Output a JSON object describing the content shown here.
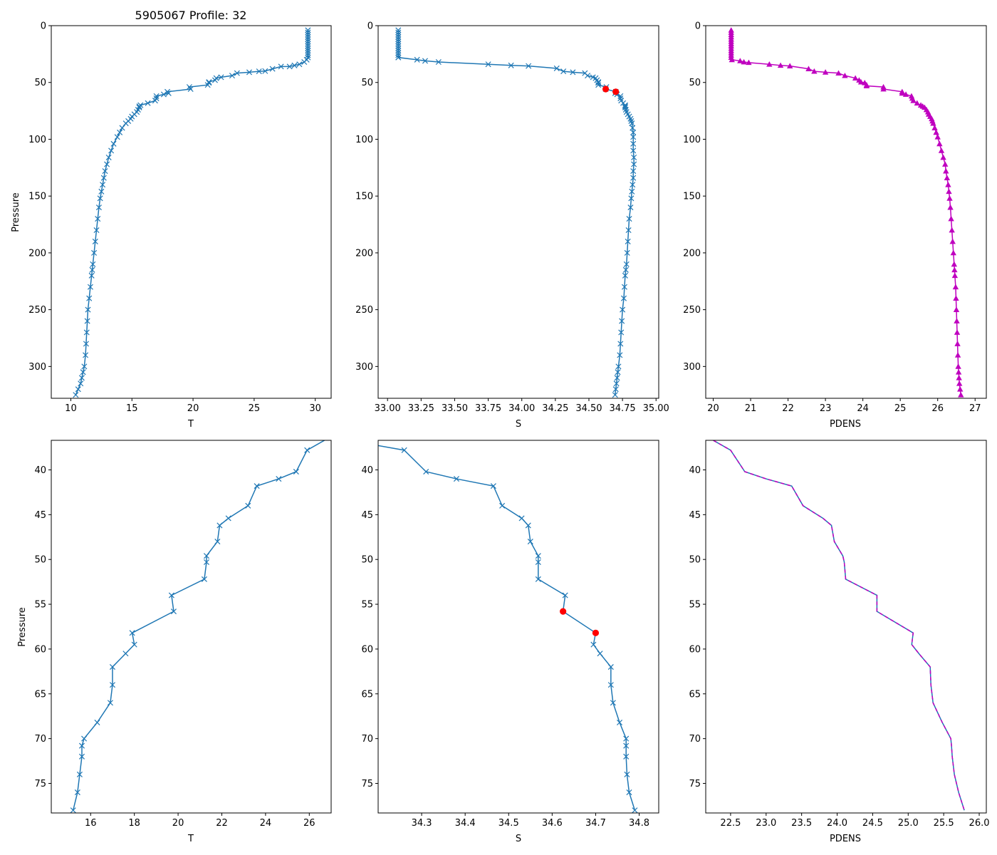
{
  "figure": {
    "title": "5905067 Profile: 32"
  },
  "colors": {
    "line": "#1f77b4",
    "density": "#bf00bf",
    "flag": "#ff0000",
    "axes": "#000000"
  },
  "chart_data": [
    {
      "id": "T-full",
      "type": "line",
      "xlabel": "T",
      "ylabel": "Pressure",
      "xlim": [
        8.4,
        31.3
      ],
      "ylim": [
        328,
        0
      ],
      "inverted_y": true,
      "xticks": [
        10,
        15,
        20,
        25,
        30
      ],
      "xtick_labels": [
        "10",
        "15",
        "20",
        "25",
        "30"
      ],
      "yticks": [
        0,
        50,
        100,
        150,
        200,
        250,
        300
      ],
      "ytick_labels": [
        "0",
        "50",
        "100",
        "150",
        "200",
        "250",
        "300"
      ],
      "series": [
        {
          "name": "T",
          "marker": "x",
          "color": "#1f77b4",
          "x": [
            29.4,
            29.4,
            29.4,
            29.4,
            29.4,
            29.4,
            29.4,
            29.4,
            29.4,
            29.4,
            29.4,
            29.4,
            29.4,
            29.3,
            29.1,
            28.7,
            28.3,
            27.9,
            27.2,
            26.5,
            25.9,
            25.4,
            24.6,
            23.6,
            23.2,
            22.3,
            21.9,
            21.8,
            21.3,
            21.3,
            21.2,
            19.7,
            19.8,
            17.9,
            18.0,
            17.6,
            17.0,
            17.0,
            16.9,
            16.3,
            15.7,
            15.6,
            15.6,
            15.5,
            15.4,
            15.2,
            15.0,
            14.9,
            14.7,
            14.5,
            14.2,
            14.0,
            13.8,
            13.5,
            13.3,
            13.1,
            12.95,
            12.8,
            12.7,
            12.6,
            12.5,
            12.4,
            12.3,
            12.2,
            12.1,
            12.0,
            11.9,
            11.8,
            11.75,
            11.7,
            11.6,
            11.5,
            11.4,
            11.35,
            11.3,
            11.25,
            11.2,
            11.1,
            11.0,
            10.9,
            10.8,
            10.6,
            10.4
          ],
          "y": [
            4,
            6,
            8,
            10,
            12,
            14,
            16,
            18,
            20,
            22,
            24,
            26,
            28,
            30,
            32,
            34,
            35,
            36,
            36,
            38,
            40,
            40.2,
            41,
            41.8,
            44,
            45.4,
            46.2,
            48,
            49.6,
            50.3,
            52.2,
            54,
            55.8,
            58.2,
            59.5,
            60.5,
            62,
            64,
            66,
            68.2,
            70,
            71,
            72,
            74,
            76,
            78,
            80,
            82,
            84,
            86,
            90,
            94,
            98,
            104,
            110,
            116,
            122,
            128,
            134,
            140,
            146,
            152,
            160,
            170,
            180,
            190,
            200,
            210,
            215,
            220,
            230,
            240,
            250,
            260,
            270,
            280,
            290,
            300,
            305,
            310,
            315,
            320,
            325
          ]
        }
      ]
    },
    {
      "id": "S-full",
      "type": "line",
      "xlabel": "S",
      "ylabel": "",
      "xlim": [
        32.93,
        35.02
      ],
      "ylim": [
        328,
        0
      ],
      "inverted_y": true,
      "xticks": [
        33.0,
        33.25,
        33.5,
        33.75,
        34.0,
        34.25,
        34.5,
        34.75,
        35.0
      ],
      "xtick_labels": [
        "33.00",
        "33.25",
        "33.50",
        "33.75",
        "34.00",
        "34.25",
        "34.50",
        "34.75",
        "35.00"
      ],
      "yticks": [
        0,
        50,
        100,
        150,
        200,
        250,
        300
      ],
      "ytick_labels": [
        "0",
        "50",
        "100",
        "150",
        "200",
        "250",
        "300"
      ],
      "series": [
        {
          "name": "S",
          "marker": "x",
          "color": "#1f77b4",
          "x": [
            33.08,
            33.08,
            33.08,
            33.08,
            33.08,
            33.08,
            33.08,
            33.08,
            33.08,
            33.08,
            33.08,
            33.08,
            33.08,
            33.08,
            33.22,
            33.28,
            33.38,
            33.75,
            33.92,
            34.05,
            34.26,
            34.31,
            34.38,
            34.47,
            34.49,
            34.53,
            34.55,
            34.56,
            34.57,
            34.57,
            34.57,
            34.63,
            34.625,
            34.7,
            34.695,
            34.71,
            34.735,
            34.735,
            34.74,
            34.755,
            34.77,
            34.77,
            34.77,
            34.775,
            34.78,
            34.79,
            34.8,
            34.81,
            34.815,
            34.82,
            34.825,
            34.83,
            34.83,
            34.83,
            34.83,
            34.835,
            34.835,
            34.83,
            34.83,
            34.825,
            34.82,
            34.815,
            34.81,
            34.8,
            34.795,
            34.79,
            34.785,
            34.78,
            34.775,
            34.77,
            34.765,
            34.76,
            34.75,
            34.745,
            34.74,
            34.735,
            34.73,
            34.72,
            34.715,
            34.71,
            34.705,
            34.7,
            34.695
          ],
          "y": [
            4,
            6,
            8,
            10,
            12,
            14,
            16,
            18,
            20,
            22,
            24,
            26,
            28,
            28,
            30,
            31,
            32,
            34,
            35,
            35.5,
            37.6,
            40.2,
            41,
            41.8,
            44,
            45.4,
            46.2,
            48,
            49.6,
            50.3,
            52.2,
            54,
            55.8,
            58.2,
            59.5,
            60.5,
            62,
            64,
            66,
            68.2,
            70,
            71,
            72,
            74,
            76,
            78,
            80,
            82,
            84,
            86,
            90,
            94,
            98,
            104,
            110,
            116,
            122,
            128,
            134,
            140,
            146,
            152,
            160,
            170,
            180,
            190,
            200,
            210,
            215,
            220,
            230,
            240,
            250,
            260,
            270,
            280,
            290,
            300,
            305,
            310,
            315,
            320,
            325
          ]
        }
      ],
      "flagged_points": {
        "x": [
          34.625,
          34.7
        ],
        "y": [
          55.8,
          58.2
        ]
      }
    },
    {
      "id": "PDENS-full",
      "type": "line",
      "xlabel": "PDENS",
      "ylabel": "",
      "xlim": [
        19.8,
        27.3
      ],
      "ylim": [
        328,
        0
      ],
      "inverted_y": true,
      "xticks": [
        20,
        21,
        22,
        23,
        24,
        25,
        26,
        27
      ],
      "xtick_labels": [
        "20",
        "21",
        "22",
        "23",
        "24",
        "25",
        "26",
        "27"
      ],
      "yticks": [
        0,
        50,
        100,
        150,
        200,
        250,
        300
      ],
      "ytick_labels": [
        "0",
        "50",
        "100",
        "150",
        "200",
        "250",
        "300"
      ],
      "series": [
        {
          "name": "PDENS",
          "marker": "triangle",
          "color": "#bf00bf",
          "x": [
            20.48,
            20.48,
            20.48,
            20.48,
            20.48,
            20.48,
            20.48,
            20.48,
            20.48,
            20.48,
            20.48,
            20.48,
            20.48,
            20.5,
            20.72,
            20.82,
            20.95,
            21.5,
            21.8,
            22.05,
            22.55,
            22.7,
            23.0,
            23.35,
            23.52,
            23.8,
            23.9,
            23.95,
            24.05,
            24.1,
            24.1,
            24.55,
            24.55,
            25.05,
            25.05,
            25.15,
            25.3,
            25.32,
            25.35,
            25.45,
            25.55,
            25.6,
            25.65,
            25.7,
            25.74,
            25.76,
            25.8,
            25.84,
            25.86,
            25.88,
            25.92,
            25.96,
            26.0,
            26.05,
            26.1,
            26.15,
            26.2,
            26.22,
            26.25,
            26.28,
            26.3,
            26.32,
            26.34,
            26.36,
            26.38,
            26.4,
            26.42,
            26.44,
            26.45,
            26.46,
            26.48,
            26.49,
            26.5,
            26.51,
            26.52,
            26.53,
            26.54,
            26.55,
            26.56,
            26.57,
            26.58,
            26.6,
            26.62
          ],
          "y": [
            4,
            6,
            8,
            10,
            12,
            14,
            16,
            18,
            20,
            22,
            24,
            26,
            28,
            30,
            31,
            32,
            32.5,
            34,
            35,
            35.5,
            38,
            40.2,
            41,
            41.8,
            44,
            46.2,
            48,
            49.6,
            50.3,
            52.2,
            53,
            54,
            55.8,
            58.2,
            59.5,
            60.5,
            62,
            64,
            66,
            68.2,
            70,
            71,
            72,
            74,
            76,
            78,
            80,
            82,
            84,
            86,
            90,
            94,
            98,
            104,
            110,
            116,
            122,
            128,
            134,
            140,
            146,
            152,
            160,
            170,
            180,
            190,
            200,
            210,
            215,
            220,
            230,
            240,
            250,
            260,
            270,
            280,
            290,
            300,
            305,
            310,
            315,
            320,
            325
          ]
        }
      ]
    },
    {
      "id": "T-zoom",
      "type": "line",
      "xlabel": "T",
      "ylabel": "Pressure",
      "xlim": [
        14.2,
        27.0
      ],
      "ylim": [
        78.3,
        36.7
      ],
      "inverted_y": true,
      "xticks": [
        16,
        18,
        20,
        22,
        24,
        26
      ],
      "xtick_labels": [
        "16",
        "18",
        "20",
        "22",
        "24",
        "26"
      ],
      "yticks": [
        40,
        45,
        50,
        55,
        60,
        65,
        70,
        75
      ],
      "ytick_labels": [
        "40",
        "45",
        "50",
        "55",
        "60",
        "65",
        "70",
        "75"
      ],
      "series": [
        {
          "name": "T",
          "marker": "x",
          "color": "#1f77b4",
          "x": [
            27.2,
            25.9,
            25.4,
            24.6,
            23.6,
            23.2,
            22.3,
            21.9,
            21.8,
            21.3,
            21.3,
            21.2,
            19.7,
            19.8,
            17.9,
            18.0,
            17.6,
            17.0,
            17.0,
            16.9,
            16.3,
            15.7,
            15.6,
            15.6,
            15.5,
            15.4,
            15.2
          ],
          "y": [
            36,
            37.8,
            40.2,
            41.0,
            41.8,
            44.0,
            45.4,
            46.2,
            48.0,
            49.6,
            50.3,
            52.2,
            54.0,
            55.8,
            58.2,
            59.5,
            60.5,
            62.0,
            64.0,
            66.0,
            68.2,
            70.0,
            70.8,
            72.0,
            74.0,
            76.0,
            78.0
          ]
        }
      ]
    },
    {
      "id": "S-zoom",
      "type": "line",
      "xlabel": "S",
      "ylabel": "",
      "xlim": [
        34.2,
        34.845
      ],
      "ylim": [
        78.3,
        36.7
      ],
      "inverted_y": true,
      "xticks": [
        34.3,
        34.4,
        34.5,
        34.6,
        34.7,
        34.8
      ],
      "xtick_labels": [
        "34.3",
        "34.4",
        "34.5",
        "34.6",
        "34.7",
        "34.8"
      ],
      "yticks": [
        40,
        45,
        50,
        55,
        60,
        65,
        70,
        75
      ],
      "ytick_labels": [
        "40",
        "45",
        "50",
        "55",
        "60",
        "65",
        "70",
        "75"
      ],
      "series": [
        {
          "name": "S",
          "marker": "x",
          "color": "#1f77b4",
          "x": [
            34.05,
            34.26,
            34.31,
            34.38,
            34.465,
            34.485,
            34.53,
            34.545,
            34.55,
            34.568,
            34.568,
            34.568,
            34.63,
            34.625,
            34.7,
            34.695,
            34.71,
            34.735,
            34.735,
            34.74,
            34.755,
            34.77,
            34.77,
            34.77,
            34.772,
            34.777,
            34.79
          ],
          "y": [
            36,
            37.8,
            40.2,
            41.0,
            41.8,
            44.0,
            45.4,
            46.2,
            48.0,
            49.6,
            50.3,
            52.2,
            54.0,
            55.8,
            58.2,
            59.5,
            60.5,
            62.0,
            64.0,
            66.0,
            68.2,
            70.0,
            70.8,
            72.0,
            74.0,
            76.0,
            78.0
          ],
          "marker_mask": [
            false,
            true,
            true,
            true,
            true,
            true,
            true,
            true,
            true,
            true,
            true,
            true,
            true,
            false,
            false,
            true,
            true,
            true,
            true,
            true,
            true,
            true,
            true,
            true,
            true,
            true,
            true
          ]
        }
      ],
      "flagged_points": {
        "x": [
          34.625,
          34.7
        ],
        "y": [
          55.8,
          58.2
        ]
      }
    },
    {
      "id": "PDENS-zoom",
      "type": "line",
      "xlabel": "PDENS",
      "ylabel": "",
      "xlim": [
        22.15,
        26.1
      ],
      "ylim": [
        78.3,
        36.7
      ],
      "inverted_y": true,
      "xticks": [
        22.5,
        23.0,
        23.5,
        24.0,
        24.5,
        25.0,
        25.5,
        26.0
      ],
      "xtick_labels": [
        "22.5",
        "23.0",
        "23.5",
        "24.0",
        "24.5",
        "25.0",
        "25.5",
        "26.0"
      ],
      "yticks": [
        40,
        45,
        50,
        55,
        60,
        65,
        70,
        75
      ],
      "ytick_labels": [
        "40",
        "45",
        "50",
        "55",
        "60",
        "65",
        "70",
        "75"
      ],
      "series": [
        {
          "name": "PDENS",
          "marker": "none",
          "color": "#bf00bf",
          "x": [
            22.1,
            22.5,
            22.7,
            23.0,
            23.36,
            23.52,
            23.8,
            23.92,
            23.96,
            24.08,
            24.1,
            24.12,
            24.56,
            24.56,
            25.07,
            25.05,
            25.15,
            25.31,
            25.32,
            25.35,
            25.48,
            25.6,
            25.61,
            25.62,
            25.65,
            25.71,
            25.79
          ],
          "y": [
            36,
            37.8,
            40.2,
            41.0,
            41.8,
            44.0,
            45.4,
            46.2,
            48.0,
            49.6,
            50.3,
            52.2,
            54.0,
            55.8,
            58.2,
            59.5,
            60.5,
            62.0,
            64.0,
            66.0,
            68.2,
            70.0,
            70.8,
            72.0,
            74.0,
            76.0,
            78.0
          ]
        }
      ]
    }
  ]
}
